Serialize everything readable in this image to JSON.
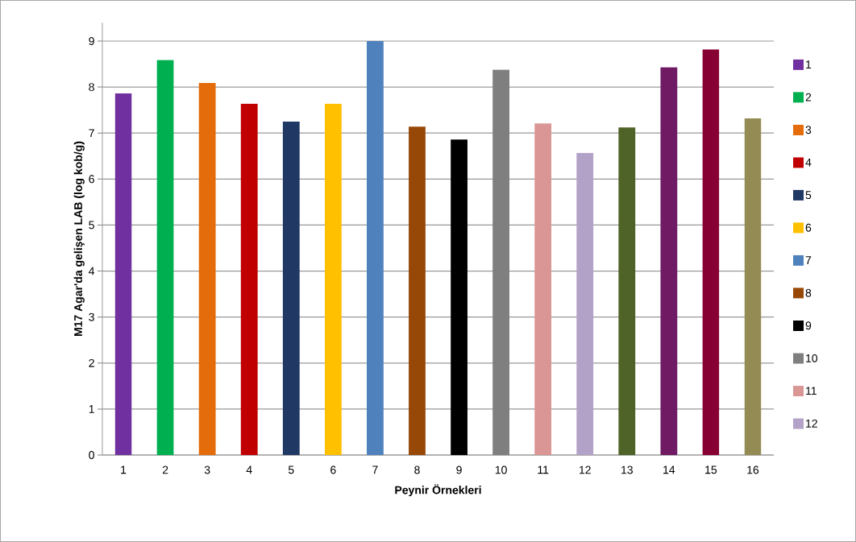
{
  "chart_data": {
    "type": "bar",
    "xlabel": "Peynir Örnekleri",
    "ylabel": "M17 Agar'da gelişen LAB (log kob/g)",
    "categories": [
      "1",
      "2",
      "3",
      "4",
      "5",
      "6",
      "7",
      "8",
      "9",
      "10",
      "11",
      "12",
      "13",
      "14",
      "15",
      "16"
    ],
    "series": [
      {
        "name": "1",
        "color": "#7030a0",
        "values": [
          7.86,
          null,
          null,
          null,
          null,
          null,
          null,
          null,
          null,
          null,
          null,
          null,
          null,
          null,
          null,
          null
        ]
      },
      {
        "name": "2",
        "color": "#00b050",
        "values": [
          null,
          8.59,
          null,
          null,
          null,
          null,
          null,
          null,
          null,
          null,
          null,
          null,
          null,
          null,
          null,
          null
        ]
      },
      {
        "name": "3",
        "color": "#e46c0a",
        "values": [
          null,
          null,
          8.09,
          null,
          null,
          null,
          null,
          null,
          null,
          null,
          null,
          null,
          null,
          null,
          null,
          null
        ]
      },
      {
        "name": "4",
        "color": "#c00000",
        "values": [
          null,
          null,
          null,
          7.64,
          null,
          null,
          null,
          null,
          null,
          null,
          null,
          null,
          null,
          null,
          null,
          null
        ]
      },
      {
        "name": "5",
        "color": "#1f3864",
        "values": [
          null,
          null,
          null,
          null,
          7.25,
          null,
          null,
          null,
          null,
          null,
          null,
          null,
          null,
          null,
          null,
          null
        ]
      },
      {
        "name": "6",
        "color": "#ffc000",
        "values": [
          null,
          null,
          null,
          null,
          null,
          7.64,
          null,
          null,
          null,
          null,
          null,
          null,
          null,
          null,
          null,
          null
        ]
      },
      {
        "name": "7",
        "color": "#4f81bd",
        "values": [
          null,
          null,
          null,
          null,
          null,
          null,
          9.0,
          null,
          null,
          null,
          null,
          null,
          null,
          null,
          null,
          null
        ]
      },
      {
        "name": "8",
        "color": "#974806",
        "values": [
          null,
          null,
          null,
          null,
          null,
          null,
          null,
          7.14,
          null,
          null,
          null,
          null,
          null,
          null,
          null,
          null
        ]
      },
      {
        "name": "9",
        "color": "#000000",
        "values": [
          null,
          null,
          null,
          null,
          null,
          null,
          null,
          null,
          6.86,
          null,
          null,
          null,
          null,
          null,
          null,
          null
        ]
      },
      {
        "name": "10",
        "color": "#7f7f7f",
        "values": [
          null,
          null,
          null,
          null,
          null,
          null,
          null,
          null,
          null,
          8.38,
          null,
          null,
          null,
          null,
          null,
          null
        ]
      },
      {
        "name": "11",
        "color": "#d99694",
        "values": [
          null,
          null,
          null,
          null,
          null,
          null,
          null,
          null,
          null,
          null,
          7.21,
          null,
          null,
          null,
          null,
          null
        ]
      },
      {
        "name": "12",
        "color": "#b3a2c7",
        "values": [
          null,
          null,
          null,
          null,
          null,
          null,
          null,
          null,
          null,
          null,
          null,
          6.57,
          null,
          null,
          null,
          null
        ]
      },
      {
        "color": "#4f6228",
        "values": [
          null,
          null,
          null,
          null,
          null,
          null,
          null,
          null,
          null,
          null,
          null,
          null,
          7.12,
          null,
          null,
          null
        ]
      },
      {
        "color": "#701a63",
        "values": [
          null,
          null,
          null,
          null,
          null,
          null,
          null,
          null,
          null,
          null,
          null,
          null,
          null,
          8.43,
          null,
          null
        ]
      },
      {
        "color": "#870034",
        "values": [
          null,
          null,
          null,
          null,
          null,
          null,
          null,
          null,
          null,
          null,
          null,
          null,
          null,
          null,
          8.82,
          null
        ]
      },
      {
        "color": "#948a54",
        "values": [
          null,
          null,
          null,
          null,
          null,
          null,
          null,
          null,
          null,
          null,
          null,
          null,
          null,
          null,
          null,
          7.32
        ]
      }
    ],
    "ylim": [
      0,
      9.4
    ],
    "yticks": [
      0,
      1,
      2,
      3,
      4,
      5,
      6,
      7,
      8,
      9
    ],
    "grid": "y",
    "legend": "right"
  }
}
